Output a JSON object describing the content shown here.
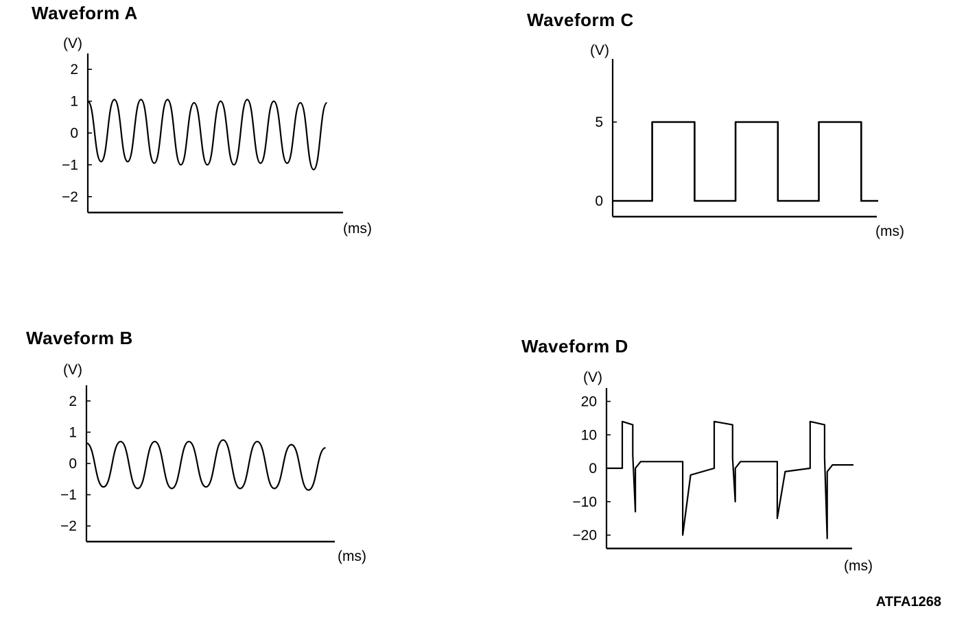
{
  "footer_code": "ATFA1268",
  "chart_data": [
    {
      "type": "line",
      "title": "Waveform A",
      "ylabel": "(V)",
      "xlabel": "(ms)",
      "ylim": [
        -2.5,
        2.5
      ],
      "yticks": [
        2,
        1,
        0,
        -1,
        -2
      ],
      "ytick_labels": [
        "2",
        "1",
        "0",
        "−1",
        "−2"
      ],
      "xrange": [
        0,
        9.4
      ],
      "x": [
        0.0,
        0.5,
        1.0,
        1.5,
        2.0,
        2.5,
        3.0,
        3.5,
        4.0,
        4.5,
        5.0,
        5.5,
        6.0,
        6.5,
        7.0,
        7.5,
        8.0,
        8.5,
        9.0
      ],
      "y": [
        1.0,
        -0.9,
        1.05,
        -0.9,
        1.05,
        -0.95,
        1.05,
        -1.0,
        0.95,
        -1.0,
        1.0,
        -1.0,
        1.05,
        -0.95,
        1.0,
        -0.95,
        0.95,
        -1.15,
        0.95
      ],
      "grid": false
    },
    {
      "type": "line",
      "title": "Waveform B",
      "ylabel": "(V)",
      "xlabel": "(ms)",
      "ylim": [
        -2.5,
        2.5
      ],
      "yticks": [
        2,
        1,
        0,
        -1,
        -2
      ],
      "ytick_labels": [
        "2",
        "1",
        "0",
        "−1",
        "−2"
      ],
      "xrange": [
        0,
        9.4
      ],
      "x": [
        0.0,
        0.65,
        1.3,
        1.95,
        2.6,
        3.25,
        3.9,
        4.55,
        5.2,
        5.85,
        6.5,
        7.15,
        7.8,
        8.45,
        9.1
      ],
      "y": [
        0.65,
        -0.75,
        0.7,
        -0.8,
        0.7,
        -0.8,
        0.7,
        -0.75,
        0.75,
        -0.8,
        0.7,
        -0.8,
        0.6,
        -0.85,
        0.5
      ],
      "grid": false
    },
    {
      "type": "line",
      "title": "Waveform C",
      "ylabel": "(V)",
      "xlabel": "(ms)",
      "ylim": [
        -1,
        9
      ],
      "yticks": [
        5,
        0
      ],
      "ytick_labels": [
        "5",
        "0"
      ],
      "xrange": [
        0,
        9.4
      ],
      "x": [
        0.0,
        1.4,
        1.4,
        2.9,
        2.9,
        4.35,
        4.35,
        5.85,
        5.85,
        7.3,
        7.3,
        8.8,
        8.8,
        9.4
      ],
      "y": [
        0,
        0,
        5,
        5,
        0,
        0,
        5,
        5,
        0,
        0,
        5,
        5,
        0,
        0
      ],
      "grid": false
    },
    {
      "type": "line",
      "title": "Waveform D",
      "ylabel": "(V)",
      "xlabel": "(ms)",
      "ylim": [
        -24,
        24
      ],
      "yticks": [
        20,
        10,
        0,
        -10,
        -20
      ],
      "ytick_labels": [
        "20",
        "10",
        "0",
        "−10",
        "−20"
      ],
      "xrange": [
        0,
        9.4
      ],
      "x": [
        0.0,
        0.6,
        0.6,
        1.0,
        1.0,
        1.1,
        1.1,
        1.3,
        2.9,
        2.9,
        3.2,
        4.1,
        4.1,
        4.8,
        4.8,
        4.9,
        4.9,
        5.1,
        6.5,
        6.5,
        6.8,
        7.75,
        7.75,
        8.3,
        8.3,
        8.4,
        8.4,
        8.6,
        9.4
      ],
      "y": [
        0,
        0,
        14,
        13,
        4,
        -13,
        0,
        2,
        2,
        -20,
        -2,
        0,
        14,
        13,
        3,
        -10,
        0,
        2,
        2,
        -15,
        -1,
        0,
        14,
        13,
        3,
        -21,
        -1,
        1,
        1
      ],
      "grid": false
    }
  ]
}
